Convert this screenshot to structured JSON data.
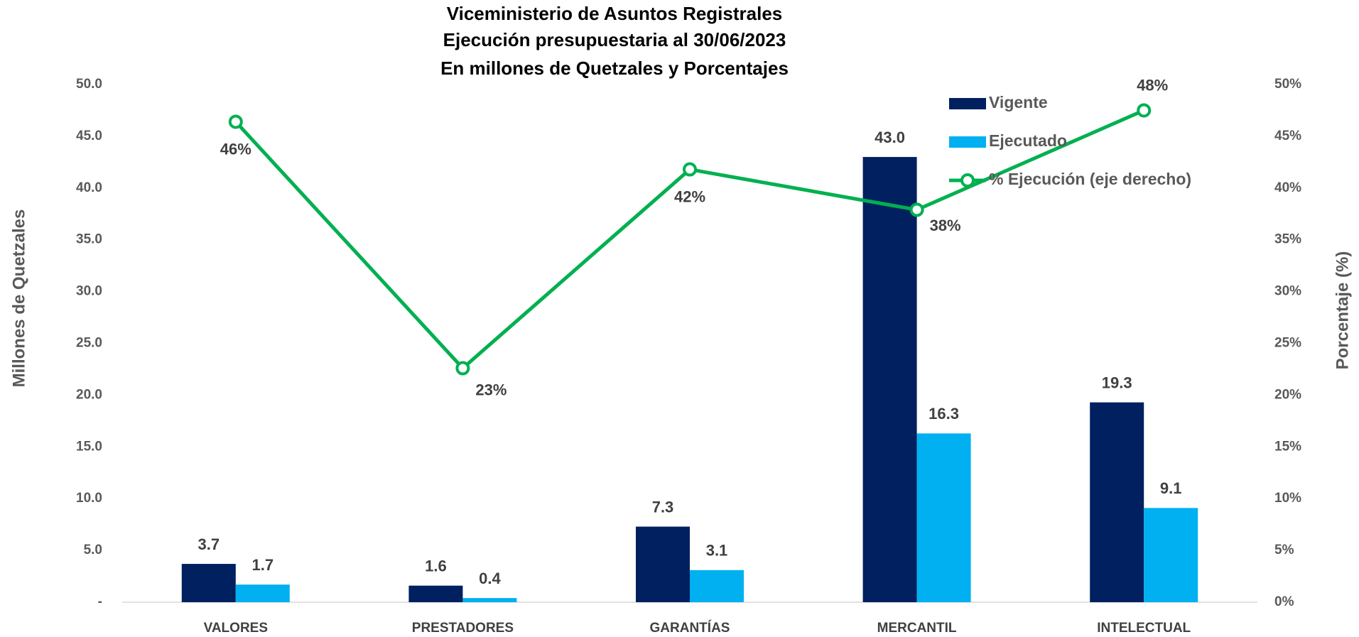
{
  "chart_data": {
    "type": "bar_line",
    "title": [
      "Viceministerio de Asuntos Registrales",
      "Ejecución presupuestaria al 30/06/2023",
      "En millones de Quetzales y Porcentajes"
    ],
    "ylabel": "Millones de Quetzales",
    "y2label": "Porcentaje (%)",
    "categories": [
      "VALORES",
      "PRESTADORES",
      "GARANTÍAS",
      "MERCANTIL",
      "INTELECTUAL"
    ],
    "series": [
      {
        "name": "Vigente",
        "type": "bar",
        "color": "#002060",
        "values": [
          3.7,
          1.6,
          7.3,
          43.0,
          19.3
        ],
        "value_labels": [
          "3.7",
          "1.6",
          "7.3",
          "43.0",
          "19.3"
        ]
      },
      {
        "name": "Ejecutado",
        "type": "bar",
        "color": "#00b0f0",
        "values": [
          1.7,
          0.4,
          3.1,
          16.3,
          9.1
        ],
        "value_labels": [
          "1.7",
          "0.4",
          "3.1",
          "16.3",
          "9.1"
        ]
      },
      {
        "name": "% Ejecución (eje derecho)",
        "type": "line",
        "axis": "y2",
        "color": "#00b050",
        "values": [
          46.4,
          22.6,
          41.8,
          37.9,
          47.5
        ],
        "value_labels": [
          "46%",
          "23%",
          "42%",
          "38%",
          "48%"
        ]
      }
    ],
    "ylim": [
      0,
      50
    ],
    "yticks": [
      {
        "value": 0,
        "label": "-"
      },
      {
        "value": 5,
        "label": "5.0"
      },
      {
        "value": 10,
        "label": "10.0"
      },
      {
        "value": 15,
        "label": "15.0"
      },
      {
        "value": 20,
        "label": "20.0"
      },
      {
        "value": 25,
        "label": "25.0"
      },
      {
        "value": 30,
        "label": "30.0"
      },
      {
        "value": 35,
        "label": "35.0"
      },
      {
        "value": 40,
        "label": "40.0"
      },
      {
        "value": 45,
        "label": "45.0"
      },
      {
        "value": 50,
        "label": "50.0"
      }
    ],
    "y2lim": [
      0,
      50
    ],
    "y2ticks": [
      {
        "value": 0,
        "label": "0%"
      },
      {
        "value": 5,
        "label": "5%"
      },
      {
        "value": 10,
        "label": "10%"
      },
      {
        "value": 15,
        "label": "15%"
      },
      {
        "value": 20,
        "label": "20%"
      },
      {
        "value": 25,
        "label": "25%"
      },
      {
        "value": 30,
        "label": "30%"
      },
      {
        "value": 35,
        "label": "35%"
      },
      {
        "value": 40,
        "label": "40%"
      },
      {
        "value": 45,
        "label": "45%"
      },
      {
        "value": 50,
        "label": "50%"
      }
    ],
    "grid": false,
    "legend": "upper right"
  }
}
